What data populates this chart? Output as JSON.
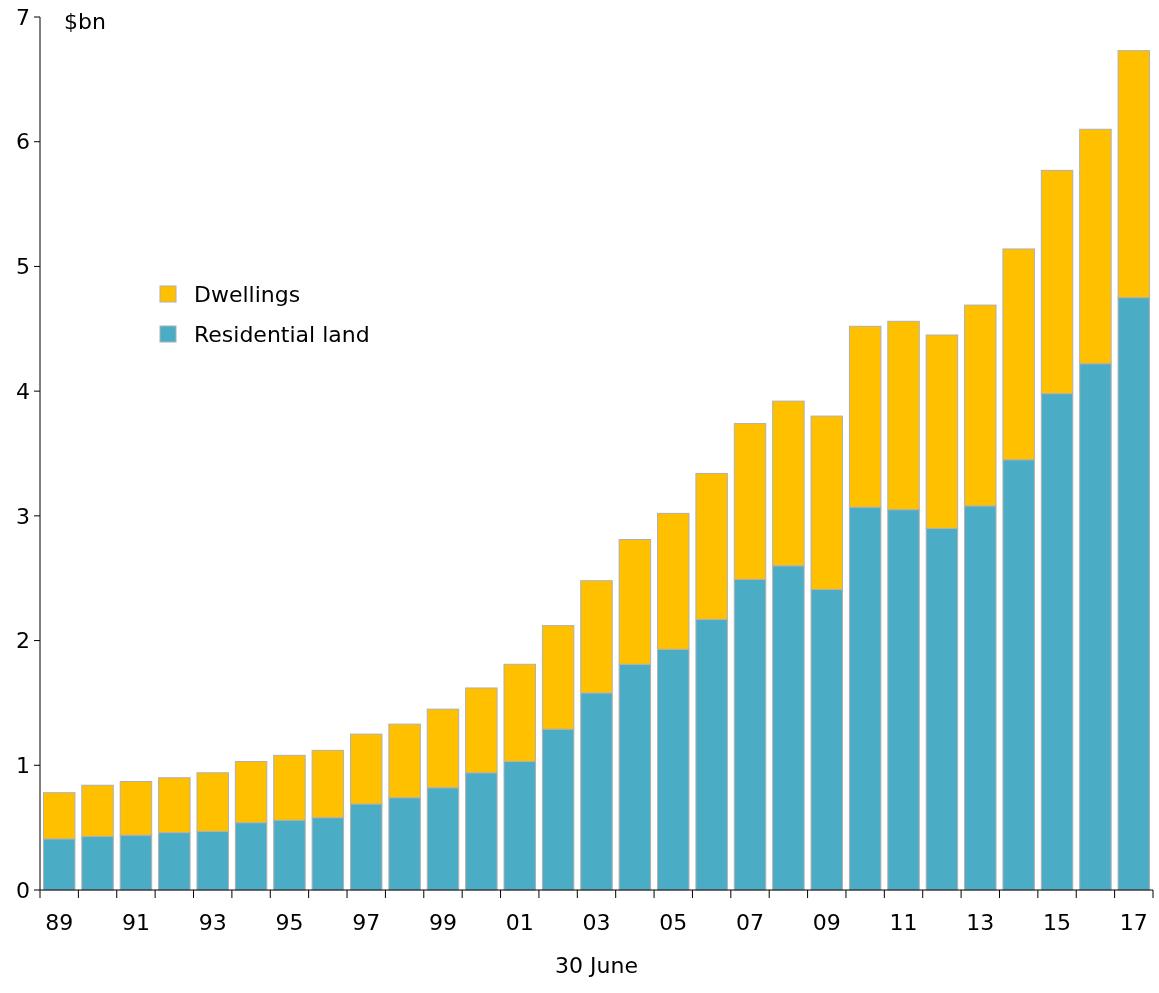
{
  "chart_data": {
    "type": "bar",
    "stacked": true,
    "ylabel": "$bn",
    "xlabel": "30 June",
    "categories": [
      "89",
      null,
      "91",
      null,
      "93",
      null,
      "95",
      null,
      "97",
      null,
      "99",
      null,
      "01",
      null,
      "03",
      null,
      "05",
      null,
      "07",
      null,
      "09",
      null,
      "11",
      null,
      "13",
      null,
      "15",
      null,
      "17"
    ],
    "series": [
      {
        "name": "Residential land",
        "color": "#4bacc6",
        "values": [
          0.41,
          0.43,
          0.44,
          0.46,
          0.47,
          0.54,
          0.56,
          0.58,
          0.69,
          0.74,
          0.82,
          0.94,
          1.03,
          1.29,
          1.58,
          1.81,
          1.93,
          2.17,
          2.49,
          2.6,
          2.41,
          3.07,
          3.05,
          2.9,
          3.08,
          3.45,
          3.98,
          4.22,
          4.75
        ]
      },
      {
        "name": "Dwellings",
        "color": "#ffc000",
        "values": [
          0.37,
          0.41,
          0.43,
          0.44,
          0.47,
          0.49,
          0.52,
          0.54,
          0.56,
          0.59,
          0.63,
          0.68,
          0.78,
          0.83,
          0.9,
          1.0,
          1.09,
          1.17,
          1.25,
          1.32,
          1.39,
          1.45,
          1.51,
          1.55,
          1.61,
          1.69,
          1.79,
          1.88,
          1.98
        ]
      }
    ],
    "ylim": [
      0,
      7
    ],
    "yticks": [
      0,
      1,
      2,
      3,
      4,
      5,
      6,
      7
    ],
    "grid": false,
    "legend": "top left"
  }
}
